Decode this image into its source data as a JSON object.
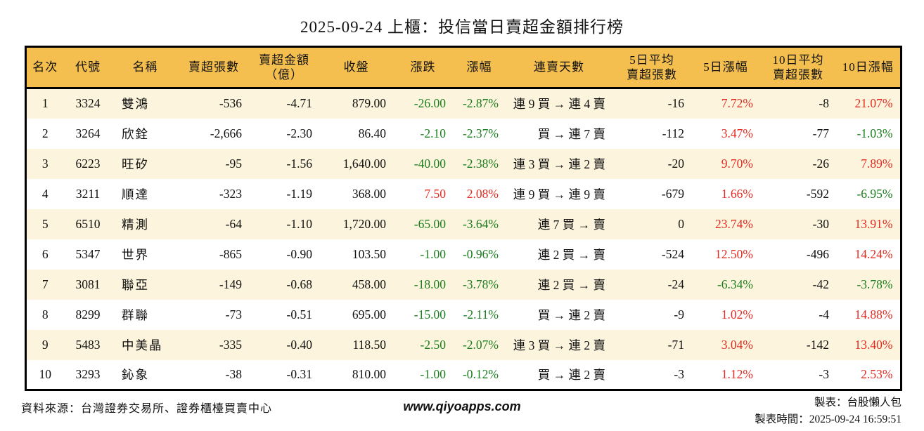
{
  "title": "2025-09-24 上櫃：投信當日賣超金額排行榜",
  "colors": {
    "header_bg": "#F5BF4F",
    "row_stripe_bg": "#FCF4DC",
    "up_red": "#E42B22",
    "down_green": "#1A7E1E"
  },
  "chart_data": {
    "type": "table",
    "title": "2025-09-24 上櫃：投信當日賣超金額排行榜",
    "legend_note": "negative values shown green, positive values shown red",
    "columns": [
      {
        "key": "rank",
        "label": "名次",
        "align": "center",
        "signed": false
      },
      {
        "key": "code",
        "label": "代號",
        "align": "center",
        "signed": false
      },
      {
        "key": "name",
        "label": "名稱",
        "align": "left",
        "signed": false
      },
      {
        "key": "vol",
        "label": "賣超張數",
        "align": "right",
        "signed": false
      },
      {
        "key": "amt",
        "label": "賣超金額\n（億）",
        "align": "right",
        "signed": false
      },
      {
        "key": "close",
        "label": "收盤",
        "align": "right",
        "signed": false
      },
      {
        "key": "chg",
        "label": "漲跌",
        "align": "right",
        "signed": true
      },
      {
        "key": "chgp",
        "label": "漲幅",
        "align": "right",
        "signed": true
      },
      {
        "key": "streak",
        "label": "連賣天數",
        "align": "right",
        "signed": false
      },
      {
        "key": "avg5",
        "label": "5日平均\n賣超張數",
        "align": "right",
        "signed": false
      },
      {
        "key": "pct5",
        "label": "5日漲幅",
        "align": "right",
        "signed": true
      },
      {
        "key": "avg10",
        "label": "10日平均\n賣超張數",
        "align": "right",
        "signed": false
      },
      {
        "key": "pct10",
        "label": "10日漲幅",
        "align": "right",
        "signed": true
      }
    ],
    "rows": [
      [
        "1",
        "3324",
        "雙鴻",
        "-536",
        "-4.71",
        "879.00",
        "-26.00",
        "-2.87%",
        "連 9 買 → 連 4 賣",
        "-16",
        "7.72%",
        "-8",
        "21.07%"
      ],
      [
        "2",
        "3264",
        "欣銓",
        "-2,666",
        "-2.30",
        "86.40",
        "-2.10",
        "-2.37%",
        "買 → 連 7 賣",
        "-112",
        "3.47%",
        "-77",
        "-1.03%"
      ],
      [
        "3",
        "6223",
        "旺矽",
        "-95",
        "-1.56",
        "1,640.00",
        "-40.00",
        "-2.38%",
        "連 3 買 → 連 2 賣",
        "-20",
        "9.70%",
        "-26",
        "7.89%"
      ],
      [
        "4",
        "3211",
        "順達",
        "-323",
        "-1.19",
        "368.00",
        "7.50",
        "2.08%",
        "連 9 買 → 連 9 賣",
        "-679",
        "1.66%",
        "-592",
        "-6.95%"
      ],
      [
        "5",
        "6510",
        "精測",
        "-64",
        "-1.10",
        "1,720.00",
        "-65.00",
        "-3.64%",
        "連 7 買 → 賣",
        "0",
        "23.74%",
        "-30",
        "13.91%"
      ],
      [
        "6",
        "5347",
        "世界",
        "-865",
        "-0.90",
        "103.50",
        "-1.00",
        "-0.96%",
        "連 2 買 → 賣",
        "-524",
        "12.50%",
        "-496",
        "14.24%"
      ],
      [
        "7",
        "3081",
        "聯亞",
        "-149",
        "-0.68",
        "458.00",
        "-18.00",
        "-3.78%",
        "連 2 買 → 賣",
        "-24",
        "-6.34%",
        "-42",
        "-3.78%"
      ],
      [
        "8",
        "8299",
        "群聯",
        "-73",
        "-0.51",
        "695.00",
        "-15.00",
        "-2.11%",
        "買 → 連 2 賣",
        "-9",
        "1.02%",
        "-4",
        "14.88%"
      ],
      [
        "9",
        "5483",
        "中美晶",
        "-335",
        "-0.40",
        "118.50",
        "-2.50",
        "-2.07%",
        "連 3 買 → 連 2 賣",
        "-71",
        "3.04%",
        "-142",
        "13.40%"
      ],
      [
        "10",
        "3293",
        "鈊象",
        "-38",
        "-0.31",
        "810.00",
        "-1.00",
        "-0.12%",
        "買 → 連 2 賣",
        "-3",
        "1.12%",
        "-3",
        "2.53%"
      ]
    ]
  },
  "footer": {
    "source": "資料來源：台灣證券交易所、證券櫃檯買賣中心",
    "website": "www.qiyoapps.com",
    "maker": "製表：台股懶人包",
    "time": "製表時間：2025-09-24 16:59:51"
  }
}
